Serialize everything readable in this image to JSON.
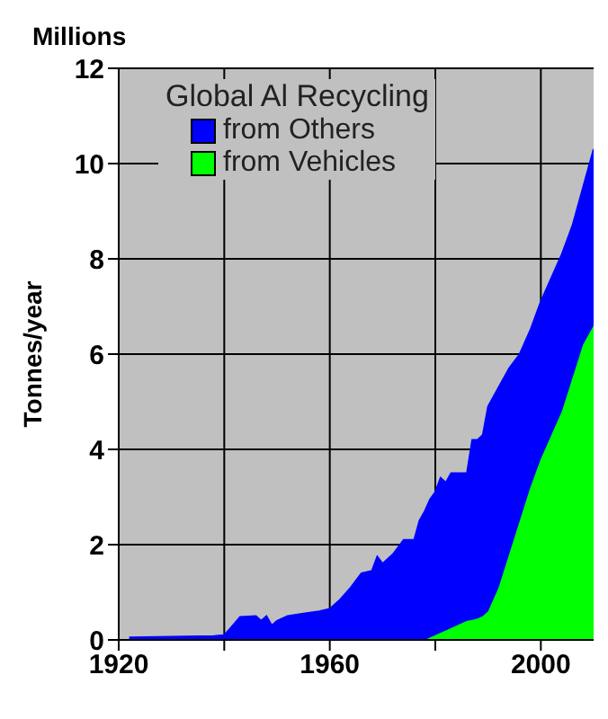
{
  "chart_data": {
    "type": "area",
    "title": "Global Al Recycling",
    "ylabel": "Tonnes/year",
    "annotations": [
      "Millions"
    ],
    "stacked": true,
    "x": [
      1922,
      1938,
      1940,
      1942,
      1943,
      1946,
      1947,
      1948,
      1949,
      1950,
      1952,
      1955,
      1958,
      1960,
      1962,
      1964,
      1966,
      1968,
      1969,
      1970,
      1972,
      1974,
      1976,
      1977,
      1978,
      1979,
      1980,
      1981,
      1982,
      1983,
      1986,
      1987,
      1988,
      1989,
      1990,
      1992,
      1994,
      1996,
      1998,
      2000,
      2002,
      2004,
      2006,
      2008,
      2010
    ],
    "series": [
      {
        "name": "from Vehicles",
        "color": "#00ff00",
        "values": [
          0,
          0,
          0,
          0,
          0,
          0,
          0,
          0,
          0,
          0,
          0,
          0,
          0,
          0,
          0,
          0,
          0,
          0,
          0,
          0,
          0,
          0,
          0,
          0,
          0,
          0.05,
          0.1,
          0.15,
          0.2,
          0.25,
          0.4,
          0.42,
          0.45,
          0.5,
          0.6,
          1.1,
          1.8,
          2.5,
          3.2,
          3.8,
          4.3,
          4.8,
          5.5,
          6.2,
          6.6
        ]
      },
      {
        "name": "from Others",
        "color": "#0000ff",
        "values": [
          0.05,
          0.08,
          0.1,
          0.35,
          0.48,
          0.5,
          0.4,
          0.5,
          0.3,
          0.4,
          0.5,
          0.55,
          0.6,
          0.65,
          0.85,
          1.1,
          1.4,
          1.45,
          1.75,
          1.6,
          1.8,
          2.1,
          2.1,
          2.5,
          2.7,
          2.9,
          3.0,
          3.25,
          3.1,
          3.25,
          3.1,
          3.78,
          3.75,
          3.8,
          4.3,
          4.2,
          3.9,
          3.5,
          3.3,
          3.3,
          3.3,
          3.3,
          3.2,
          3.3,
          3.7
        ]
      }
    ],
    "xlim": [
      1920,
      2010
    ],
    "xticks": [
      1920,
      {
        "value": 1940,
        "label": null
      },
      1960,
      {
        "value": 1980,
        "label": null
      },
      2000
    ],
    "ylim": [
      0,
      12
    ],
    "yticks": [
      0,
      2,
      4,
      6,
      8,
      10,
      12
    ],
    "grid": true,
    "legend": "top"
  }
}
